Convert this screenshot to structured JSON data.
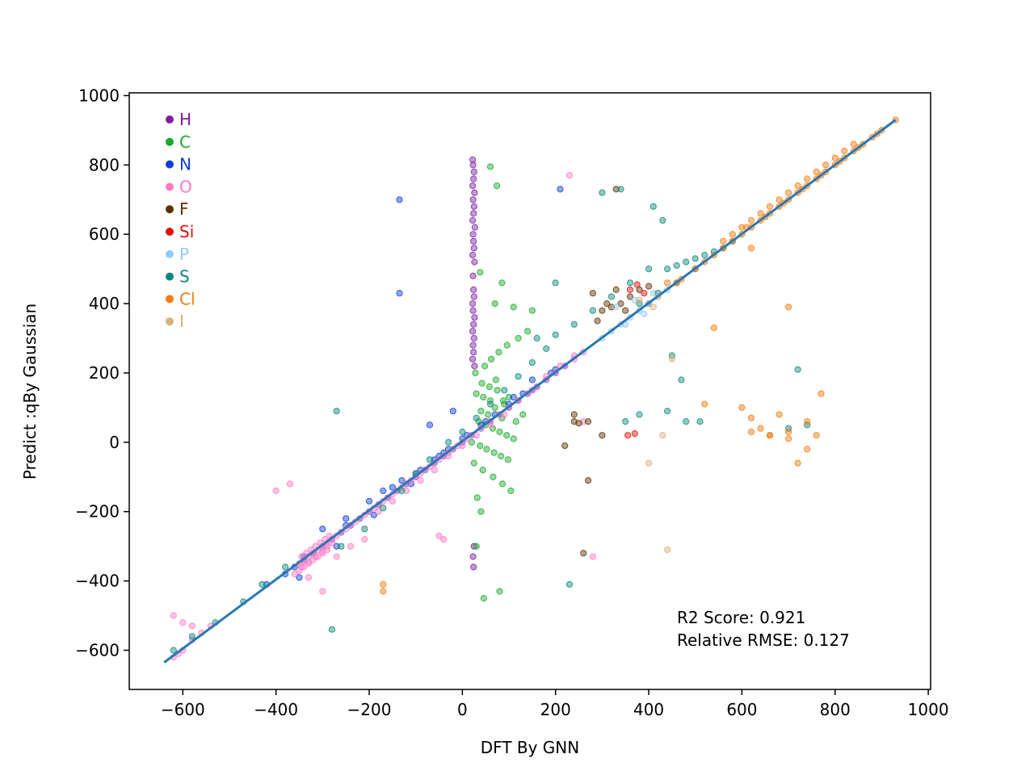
{
  "chart_data": {
    "type": "scatter",
    "xlabel": "DFT By GNN",
    "ylabel": "Predict :qBy Gaussian",
    "xlim": [
      -715,
      1005
    ],
    "ylim": [
      -713,
      1008
    ],
    "xticks": [
      -600,
      -400,
      -200,
      0,
      200,
      400,
      600,
      800,
      1000
    ],
    "yticks": [
      -600,
      -400,
      -200,
      0,
      200,
      400,
      600,
      800,
      1000
    ],
    "tick_labels": {
      "x": [
        "−600",
        "−400",
        "−200",
        "0",
        "200",
        "400",
        "600",
        "800",
        "1000"
      ],
      "y": [
        "−600",
        "−400",
        "−200",
        "0",
        "200",
        "400",
        "600",
        "800",
        "1000"
      ]
    },
    "grid": false,
    "legend_position": "top-left",
    "fit_line": {
      "x": [
        -640,
        930
      ],
      "y": [
        -635,
        930
      ],
      "color": "#2b78b3"
    },
    "annotations": [
      "R2 Score: 0.921",
      "Relative RMSE: 0.127"
    ],
    "series": [
      {
        "name": "H",
        "color": "#7b1fa2",
        "x": [
          22,
          23,
          25,
          24,
          22,
          26,
          23,
          25,
          24,
          22,
          27,
          23,
          24,
          25,
          22,
          26,
          23,
          24,
          25,
          22,
          23,
          26,
          24,
          22,
          25,
          23,
          24,
          22,
          26,
          25,
          23,
          24
        ],
        "y": [
          815,
          800,
          780,
          760,
          740,
          720,
          700,
          680,
          660,
          640,
          620,
          600,
          580,
          560,
          540,
          520,
          480,
          440,
          420,
          400,
          380,
          360,
          340,
          320,
          300,
          280,
          260,
          240,
          220,
          -300,
          -330,
          -360
        ]
      },
      {
        "name": "C",
        "color": "#1aaa2a",
        "x": [
          30,
          45,
          60,
          75,
          90,
          40,
          55,
          70,
          85,
          100,
          35,
          50,
          65,
          80,
          95,
          110,
          20,
          38,
          52,
          68,
          83,
          98,
          115,
          130,
          42,
          58,
          72,
          88,
          28,
          48,
          62,
          78,
          96,
          120,
          140,
          25,
          44,
          66,
          86,
          104,
          32,
          40,
          70,
          110,
          150,
          46,
          80,
          30,
          60,
          74,
          38,
          85
        ],
        "y": [
          140,
          130,
          120,
          150,
          110,
          90,
          80,
          100,
          70,
          130,
          60,
          50,
          40,
          30,
          20,
          10,
          0,
          -10,
          -20,
          -30,
          -40,
          -50,
          60,
          80,
          170,
          160,
          180,
          120,
          200,
          220,
          240,
          260,
          280,
          300,
          320,
          -60,
          -80,
          -100,
          -120,
          -140,
          -160,
          -200,
          400,
          390,
          380,
          -450,
          -430,
          -300,
          795,
          740,
          490,
          460
        ]
      },
      {
        "name": "N",
        "color": "#0b3fd6",
        "x": [
          -380,
          -360,
          -340,
          -320,
          -300,
          -280,
          -260,
          -240,
          -220,
          -200,
          -180,
          -160,
          -140,
          -120,
          -100,
          -80,
          -60,
          -40,
          -20,
          0,
          20,
          40,
          60,
          80,
          100,
          120,
          140,
          160,
          180,
          200,
          220,
          -300,
          -250,
          -200,
          -150,
          -100,
          -50,
          0,
          50,
          100,
          150,
          200,
          -170,
          -130,
          -90,
          -60,
          -30,
          10,
          70,
          130,
          190,
          -350,
          -270,
          -190,
          -110,
          -40,
          40,
          110,
          -135,
          -135,
          -420,
          -340,
          -250,
          150,
          210,
          -70,
          -20
        ],
        "y": [
          -380,
          -360,
          -340,
          -320,
          -300,
          -280,
          -260,
          -240,
          -220,
          -200,
          -180,
          -160,
          -140,
          -120,
          -100,
          -80,
          -60,
          -40,
          -20,
          0,
          20,
          40,
          60,
          80,
          100,
          120,
          140,
          160,
          180,
          200,
          220,
          -250,
          -220,
          -170,
          -130,
          -90,
          -40,
          10,
          60,
          110,
          150,
          210,
          -140,
          -110,
          -80,
          -50,
          -20,
          20,
          80,
          140,
          200,
          -390,
          -300,
          -210,
          -120,
          -30,
          50,
          130,
          700,
          430,
          -410,
          -330,
          -240,
          180,
          730,
          50,
          90
        ]
      },
      {
        "name": "O",
        "color": "#ff7ac4",
        "x": [
          -620,
          -610,
          -600,
          -580,
          -560,
          -540,
          -350,
          -340,
          -330,
          -320,
          -310,
          -300,
          -290,
          -280,
          -270,
          -260,
          -250,
          -240,
          -230,
          -220,
          -210,
          -200,
          -190,
          -180,
          -170,
          -160,
          -150,
          -140,
          -130,
          -120,
          -110,
          -100,
          -90,
          -80,
          -70,
          -60,
          -50,
          -40,
          -30,
          -20,
          -10,
          0,
          10,
          20,
          40,
          60,
          80,
          100,
          120,
          140,
          160,
          180,
          200,
          220,
          240,
          260,
          -345,
          -335,
          -325,
          -315,
          -305,
          -295,
          -285,
          -345,
          -330,
          -315,
          -300,
          -290,
          -280,
          -360,
          -350,
          -340,
          -330,
          -320,
          -310,
          -300,
          -290,
          -180,
          -150,
          -120,
          -90,
          -60,
          -30,
          0,
          30,
          60,
          90,
          120,
          150,
          180,
          210,
          240,
          -400,
          -370,
          -330,
          -300,
          -270,
          -240,
          -210,
          230,
          260,
          280,
          -50,
          -40,
          -620,
          -600,
          -580
        ],
        "y": [
          -620,
          -610,
          -600,
          -570,
          -550,
          -530,
          -350,
          -340,
          -330,
          -320,
          -310,
          -300,
          -290,
          -280,
          -270,
          -260,
          -250,
          -240,
          -230,
          -220,
          -210,
          -200,
          -190,
          -180,
          -170,
          -160,
          -150,
          -140,
          -130,
          -120,
          -110,
          -100,
          -90,
          -80,
          -70,
          -60,
          -50,
          -40,
          -30,
          -20,
          -10,
          0,
          10,
          20,
          40,
          60,
          80,
          100,
          120,
          140,
          160,
          180,
          200,
          220,
          240,
          260,
          -330,
          -320,
          -310,
          -300,
          -290,
          -280,
          -270,
          -360,
          -345,
          -330,
          -315,
          -300,
          -290,
          -380,
          -370,
          -360,
          -350,
          -340,
          -330,
          -320,
          -310,
          -200,
          -170,
          -140,
          -110,
          -80,
          -40,
          -10,
          20,
          50,
          80,
          120,
          150,
          190,
          220,
          250,
          -140,
          -120,
          -390,
          -430,
          -330,
          -300,
          -280,
          770,
          60,
          -330,
          -270,
          -280,
          -500,
          -520,
          -530
        ]
      },
      {
        "name": "F",
        "color": "#5e3100",
        "x": [
          250,
          270,
          290,
          300,
          320,
          340,
          360,
          380,
          280,
          310,
          350,
          400,
          240,
          220,
          260,
          300,
          330,
          270,
          240,
          330,
          400
        ],
        "y": [
          55,
          60,
          350,
          380,
          390,
          400,
          420,
          440,
          430,
          400,
          380,
          400,
          60,
          -10,
          -320,
          20,
          730,
          -110,
          80,
          440,
          450
        ]
      },
      {
        "name": "Si",
        "color": "#e0100a",
        "x": [
          360,
          375,
          390,
          355,
          370
        ],
        "y": [
          440,
          455,
          430,
          20,
          25
        ]
      },
      {
        "name": "P",
        "color": "#93ccf6",
        "x": [
          300,
          320,
          340,
          360,
          380,
          400,
          420,
          440,
          330,
          370,
          410,
          350,
          390
        ],
        "y": [
          300,
          320,
          340,
          360,
          380,
          400,
          420,
          440,
          390,
          410,
          430,
          340,
          370
        ]
      },
      {
        "name": "S",
        "color": "#0a8a7a",
        "x": [
          -620,
          -580,
          -530,
          -470,
          -430,
          -380,
          -280,
          -260,
          -210,
          -170,
          -130,
          -100,
          -70,
          -30,
          0,
          30,
          60,
          90,
          120,
          150,
          180,
          200,
          240,
          280,
          320,
          360,
          400,
          440,
          460,
          480,
          500,
          520,
          540,
          560,
          580,
          300,
          340,
          380,
          420,
          460,
          500,
          410,
          430,
          450,
          470,
          350,
          380,
          440,
          480,
          510,
          700,
          720,
          740,
          200,
          230,
          160,
          -270
        ],
        "y": [
          -600,
          -560,
          -520,
          -460,
          -410,
          -360,
          -540,
          -300,
          -250,
          -190,
          -140,
          -90,
          -50,
          0,
          30,
          70,
          110,
          150,
          190,
          230,
          270,
          310,
          340,
          380,
          420,
          460,
          500,
          500,
          510,
          520,
          530,
          540,
          550,
          560,
          580,
          720,
          730,
          400,
          430,
          460,
          500,
          680,
          640,
          250,
          180,
          60,
          80,
          90,
          60,
          60,
          40,
          210,
          50,
          460,
          -410,
          300,
          90
        ]
      },
      {
        "name": "Cl",
        "color": "#f57b0c",
        "x": [
          440,
          470,
          500,
          520,
          540,
          560,
          580,
          600,
          620,
          640,
          660,
          680,
          700,
          720,
          740,
          760,
          780,
          800,
          820,
          840,
          860,
          880,
          900,
          930,
          600,
          620,
          640,
          660,
          680,
          700,
          720,
          740,
          760,
          780,
          800,
          820,
          840,
          560,
          580,
          610,
          650,
          690,
          730,
          770,
          810,
          850,
          890,
          600,
          620,
          640,
          660,
          680,
          700,
          720,
          740,
          760,
          770,
          620,
          660,
          700,
          740,
          700,
          620,
          540,
          520,
          -170,
          -170,
          460
        ],
        "y": [
          460,
          470,
          500,
          520,
          540,
          560,
          580,
          600,
          620,
          640,
          660,
          680,
          700,
          720,
          740,
          760,
          780,
          800,
          820,
          840,
          860,
          880,
          900,
          930,
          620,
          640,
          660,
          680,
          700,
          720,
          740,
          760,
          780,
          800,
          820,
          840,
          860,
          580,
          600,
          620,
          650,
          690,
          730,
          770,
          810,
          850,
          890,
          100,
          70,
          40,
          20,
          80,
          10,
          -60,
          60,
          20,
          140,
          30,
          20,
          30,
          -20,
          390,
          560,
          330,
          110,
          -410,
          -430,
          460
        ]
      },
      {
        "name": "I",
        "color": "#d9b07a",
        "x": [
          440,
          450,
          420,
          400,
          380,
          410,
          430
        ],
        "y": [
          -310,
          240,
          420,
          -60,
          410,
          390,
          20
        ]
      }
    ]
  }
}
